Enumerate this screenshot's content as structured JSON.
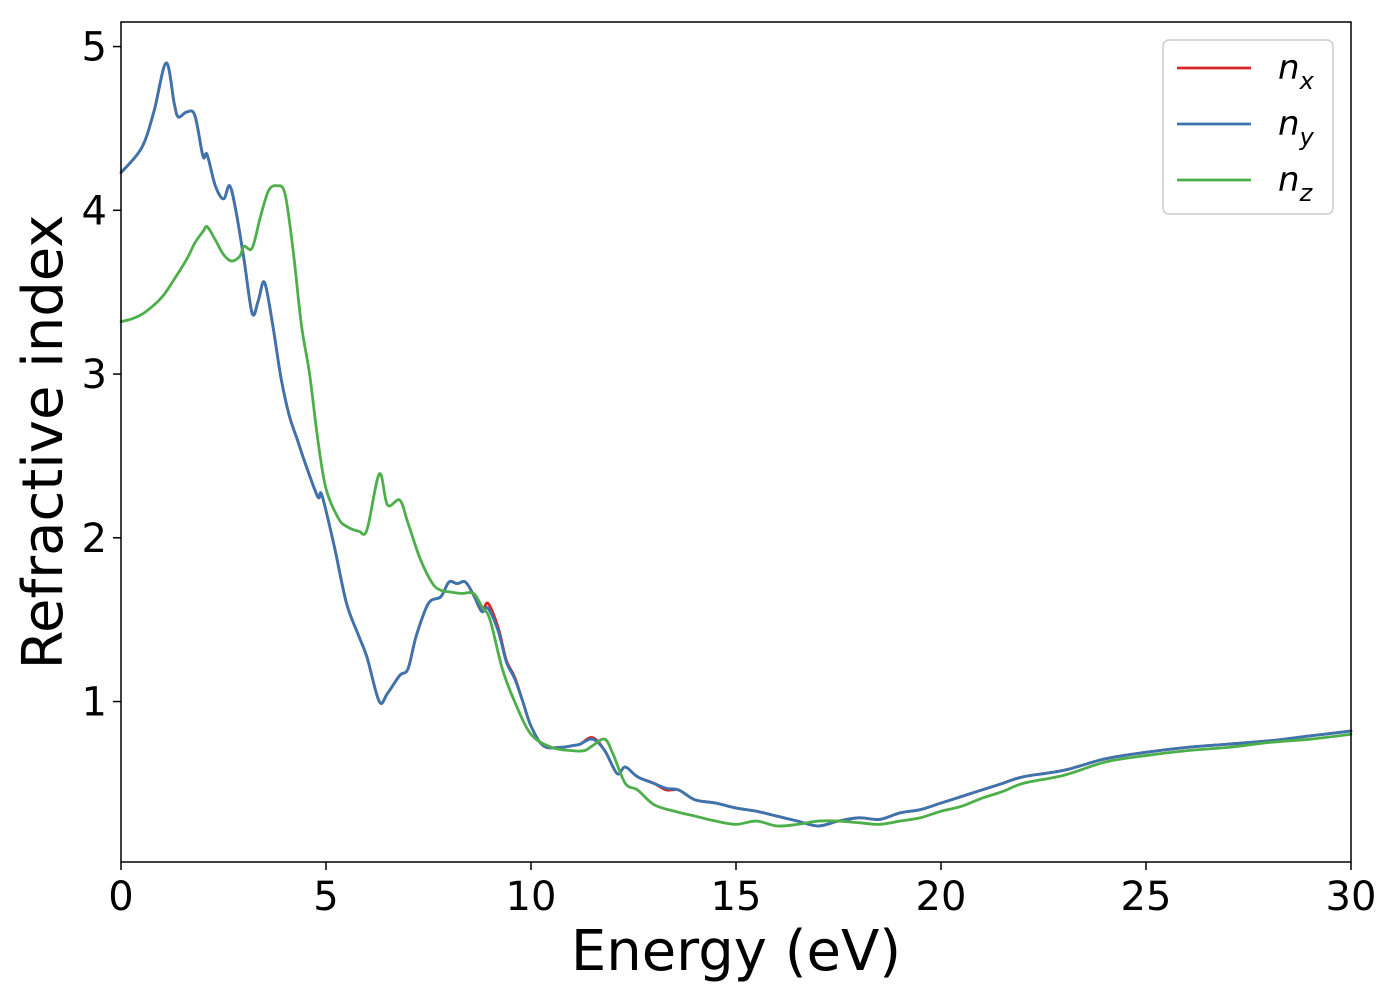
{
  "chart_data": {
    "type": "line",
    "title": "",
    "xlabel": "Energy (eV)",
    "ylabel": "Refractive index",
    "xlim": [
      0,
      30
    ],
    "ylim": [
      0.02,
      5.15
    ],
    "xticks": [
      0,
      5,
      10,
      15,
      20,
      25,
      30
    ],
    "yticks": [
      1,
      2,
      3,
      4,
      5
    ],
    "grid": false,
    "legend_position": "top-right",
    "series": [
      {
        "name": "n",
        "subscript": "x",
        "color": "#d62728",
        "x": [
          0,
          0.5,
          0.8,
          1.1,
          1.3,
          1.4,
          1.6,
          1.8,
          2.0,
          2.1,
          2.3,
          2.5,
          2.65,
          2.8,
          3.0,
          3.2,
          3.35,
          3.5,
          3.7,
          3.9,
          4.1,
          4.3,
          4.5,
          4.8,
          4.9,
          5.2,
          5.5,
          5.8,
          6.0,
          6.3,
          6.5,
          6.8,
          7.0,
          7.2,
          7.5,
          7.8,
          8.0,
          8.2,
          8.4,
          8.6,
          8.8,
          8.95,
          9.2,
          9.4,
          9.6,
          9.8,
          10.0,
          10.3,
          10.7,
          11.0,
          11.2,
          11.5,
          11.8,
          12.1,
          12.3,
          12.6,
          13.0,
          13.3,
          13.6,
          14.0,
          14.5,
          15.0,
          15.5,
          16.0,
          16.5,
          17.0,
          17.5,
          18.0,
          18.5,
          19.0,
          19.5,
          20.0,
          20.5,
          21.0,
          21.5,
          22.0,
          23.0,
          24.0,
          25.0,
          26.0,
          27.0,
          28.0,
          29.0,
          30.0
        ],
        "y": [
          4.23,
          4.38,
          4.6,
          4.9,
          4.65,
          4.57,
          4.6,
          4.58,
          4.33,
          4.34,
          4.15,
          4.07,
          4.15,
          4.0,
          3.7,
          3.37,
          3.45,
          3.56,
          3.3,
          2.98,
          2.75,
          2.6,
          2.45,
          2.25,
          2.26,
          1.95,
          1.6,
          1.4,
          1.27,
          1.0,
          1.05,
          1.16,
          1.2,
          1.4,
          1.6,
          1.64,
          1.73,
          1.72,
          1.73,
          1.65,
          1.55,
          1.6,
          1.45,
          1.25,
          1.15,
          1.0,
          0.85,
          0.73,
          0.72,
          0.73,
          0.74,
          0.78,
          0.7,
          0.56,
          0.6,
          0.54,
          0.5,
          0.46,
          0.46,
          0.4,
          0.38,
          0.35,
          0.33,
          0.3,
          0.27,
          0.24,
          0.27,
          0.29,
          0.28,
          0.32,
          0.34,
          0.38,
          0.42,
          0.46,
          0.5,
          0.54,
          0.58,
          0.65,
          0.69,
          0.72,
          0.74,
          0.76,
          0.79,
          0.82
        ]
      },
      {
        "name": "n",
        "subscript": "y",
        "color": "#3b75af",
        "x": [
          0,
          0.5,
          0.8,
          1.1,
          1.3,
          1.4,
          1.6,
          1.8,
          2.0,
          2.1,
          2.3,
          2.5,
          2.65,
          2.8,
          3.0,
          3.2,
          3.35,
          3.5,
          3.7,
          3.9,
          4.1,
          4.3,
          4.5,
          4.8,
          4.9,
          5.2,
          5.5,
          5.8,
          6.0,
          6.3,
          6.5,
          6.8,
          7.0,
          7.2,
          7.5,
          7.8,
          8.0,
          8.2,
          8.4,
          8.6,
          8.8,
          8.95,
          9.2,
          9.4,
          9.6,
          9.8,
          10.0,
          10.3,
          10.7,
          11.0,
          11.2,
          11.5,
          11.8,
          12.1,
          12.3,
          12.6,
          13.0,
          13.3,
          13.6,
          14.0,
          14.5,
          15.0,
          15.5,
          16.0,
          16.5,
          17.0,
          17.5,
          18.0,
          18.5,
          19.0,
          19.5,
          20.0,
          20.5,
          21.0,
          21.5,
          22.0,
          23.0,
          24.0,
          25.0,
          26.0,
          27.0,
          28.0,
          29.0,
          30.0
        ],
        "y": [
          4.23,
          4.38,
          4.6,
          4.9,
          4.65,
          4.57,
          4.6,
          4.58,
          4.33,
          4.34,
          4.15,
          4.07,
          4.15,
          4.0,
          3.7,
          3.37,
          3.45,
          3.56,
          3.3,
          2.98,
          2.75,
          2.6,
          2.45,
          2.25,
          2.26,
          1.95,
          1.6,
          1.4,
          1.27,
          1.0,
          1.05,
          1.16,
          1.2,
          1.4,
          1.6,
          1.64,
          1.73,
          1.72,
          1.73,
          1.65,
          1.55,
          1.57,
          1.43,
          1.24,
          1.14,
          1.0,
          0.85,
          0.73,
          0.72,
          0.73,
          0.74,
          0.77,
          0.7,
          0.56,
          0.6,
          0.54,
          0.5,
          0.47,
          0.46,
          0.4,
          0.38,
          0.35,
          0.33,
          0.3,
          0.27,
          0.24,
          0.27,
          0.29,
          0.28,
          0.32,
          0.34,
          0.38,
          0.42,
          0.46,
          0.5,
          0.54,
          0.58,
          0.65,
          0.69,
          0.72,
          0.74,
          0.76,
          0.79,
          0.82
        ]
      },
      {
        "name": "n",
        "subscript": "z",
        "color": "#4daf4a",
        "x": [
          0,
          0.3,
          0.6,
          1.0,
          1.3,
          1.6,
          1.8,
          2.0,
          2.1,
          2.3,
          2.5,
          2.7,
          2.9,
          3.0,
          3.2,
          3.4,
          3.6,
          3.8,
          4.0,
          4.2,
          4.4,
          4.6,
          4.8,
          5.0,
          5.3,
          5.5,
          5.8,
          6.0,
          6.3,
          6.5,
          6.8,
          7.0,
          7.3,
          7.6,
          7.8,
          8.0,
          8.3,
          8.6,
          8.8,
          9.0,
          9.3,
          9.6,
          10.0,
          10.5,
          11.0,
          11.3,
          11.5,
          11.8,
          12.0,
          12.3,
          12.6,
          13.0,
          13.5,
          14.0,
          14.5,
          15.0,
          15.5,
          16.0,
          16.5,
          17.0,
          17.5,
          18.0,
          18.5,
          19.0,
          19.5,
          20.0,
          20.5,
          21.0,
          21.5,
          22.0,
          23.0,
          24.0,
          25.0,
          26.0,
          27.0,
          28.0,
          29.0,
          30.0
        ],
        "y": [
          3.32,
          3.34,
          3.38,
          3.47,
          3.58,
          3.7,
          3.8,
          3.87,
          3.9,
          3.82,
          3.73,
          3.69,
          3.72,
          3.78,
          3.77,
          3.96,
          4.12,
          4.15,
          4.1,
          3.75,
          3.3,
          3.0,
          2.6,
          2.3,
          2.12,
          2.07,
          2.04,
          2.05,
          2.39,
          2.2,
          2.23,
          2.09,
          1.87,
          1.72,
          1.68,
          1.67,
          1.66,
          1.66,
          1.58,
          1.5,
          1.2,
          1.0,
          0.8,
          0.72,
          0.7,
          0.7,
          0.73,
          0.77,
          0.68,
          0.5,
          0.46,
          0.37,
          0.33,
          0.3,
          0.27,
          0.25,
          0.27,
          0.24,
          0.25,
          0.27,
          0.27,
          0.26,
          0.25,
          0.27,
          0.29,
          0.33,
          0.36,
          0.41,
          0.45,
          0.5,
          0.55,
          0.63,
          0.67,
          0.7,
          0.72,
          0.75,
          0.77,
          0.8
        ]
      }
    ]
  }
}
